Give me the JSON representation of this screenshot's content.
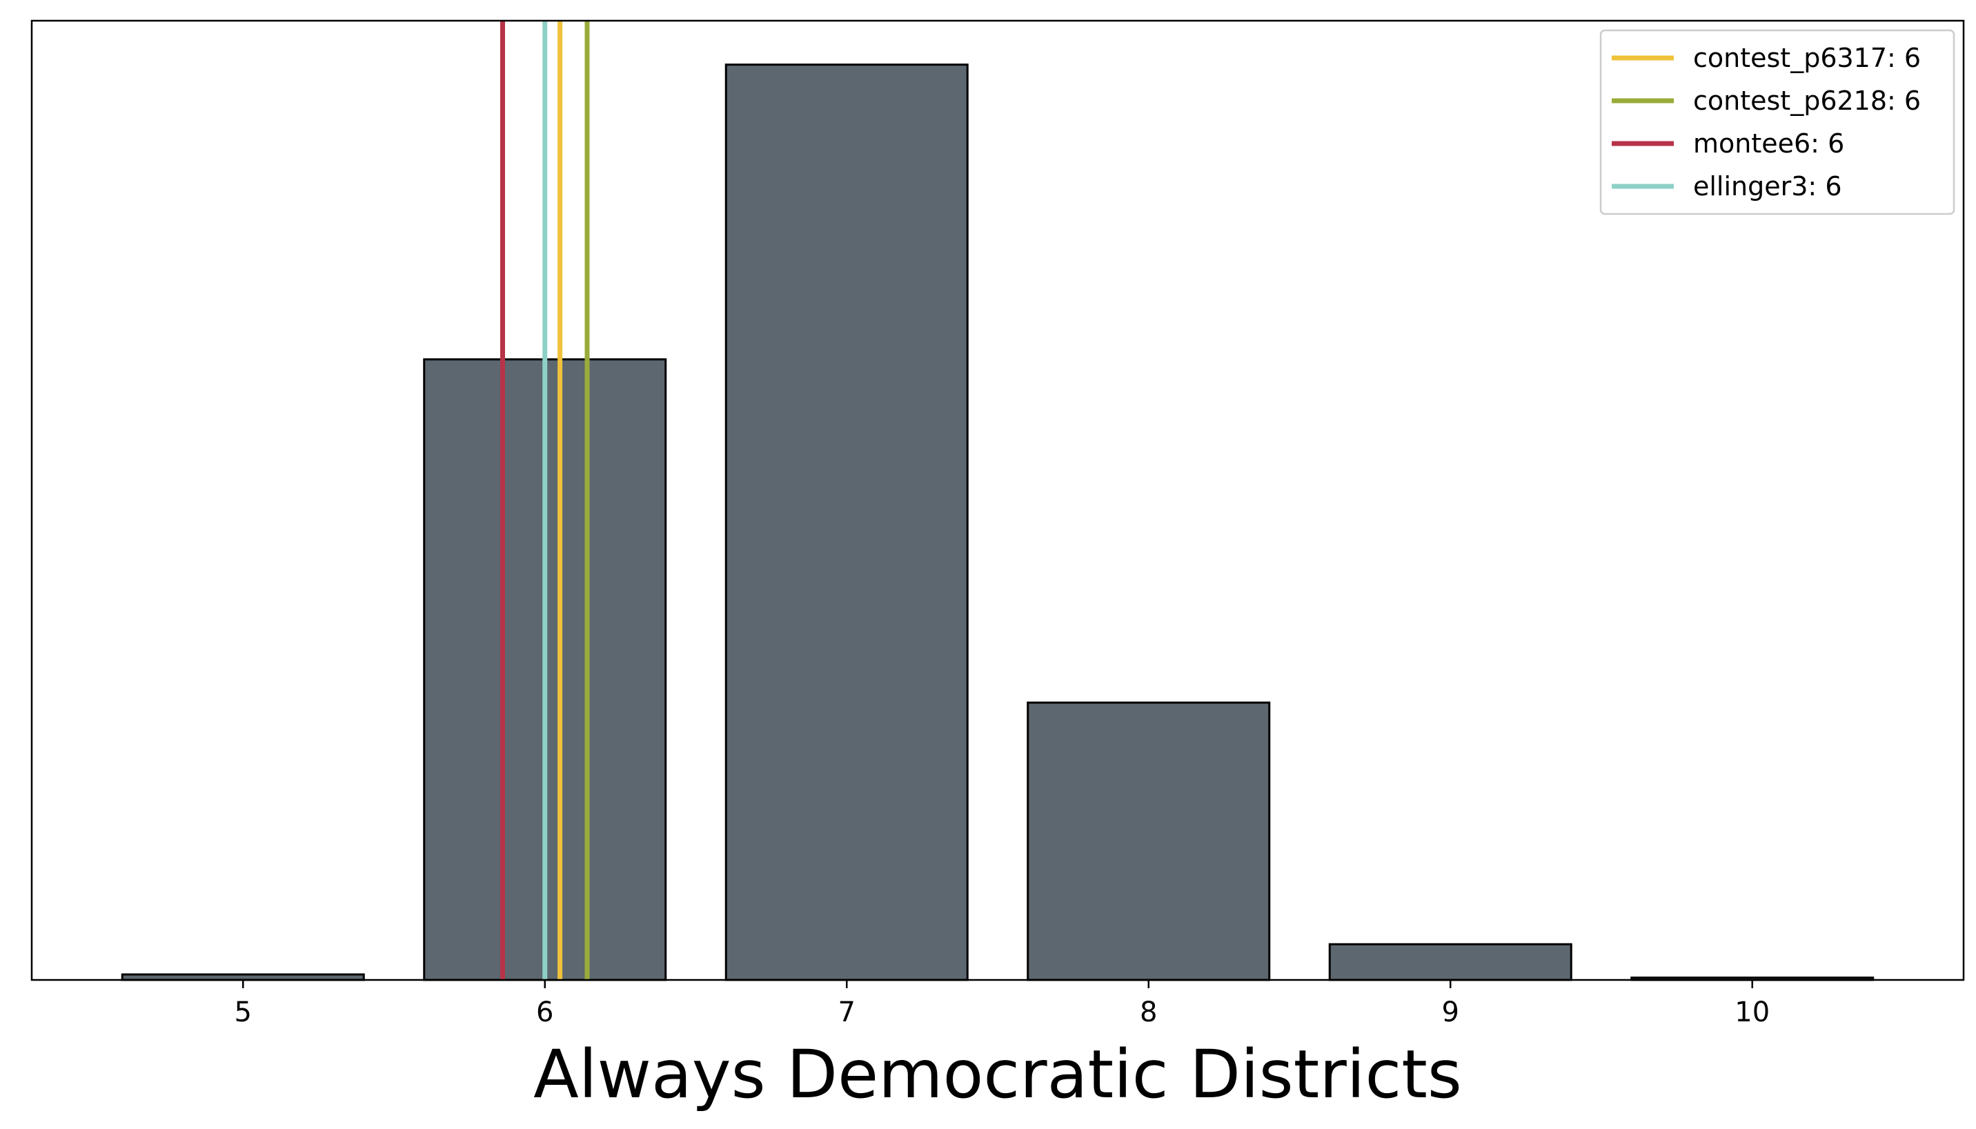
{
  "chart_data": {
    "type": "bar",
    "title": "",
    "xlabel": "Always Democratic Districts",
    "ylabel": "",
    "categories": [
      5,
      6,
      7,
      8,
      9,
      10
    ],
    "values": [
      0.6,
      67.8,
      100,
      30.3,
      3.9,
      0.25
    ],
    "bar_width": 0.8,
    "xlim": [
      4.3,
      10.7
    ],
    "ylim": [
      0,
      104.8
    ],
    "grid": false,
    "y_ticks_visible": false,
    "bar_color": "#5d6770",
    "bar_edge_color": "#000000",
    "reference_lines": [
      {
        "label": "contest_p6317: 6",
        "x": 6.05,
        "color": "#f0c23b"
      },
      {
        "label": "contest_p6218: 6",
        "x": 6.14,
        "color": "#9aab3a"
      },
      {
        "label": "montee6: 6",
        "x": 5.86,
        "color": "#b83248"
      },
      {
        "label": "ellinger3: 6",
        "x": 6.0,
        "color": "#8dd0c6"
      }
    ],
    "legend_placement": "top-right"
  }
}
